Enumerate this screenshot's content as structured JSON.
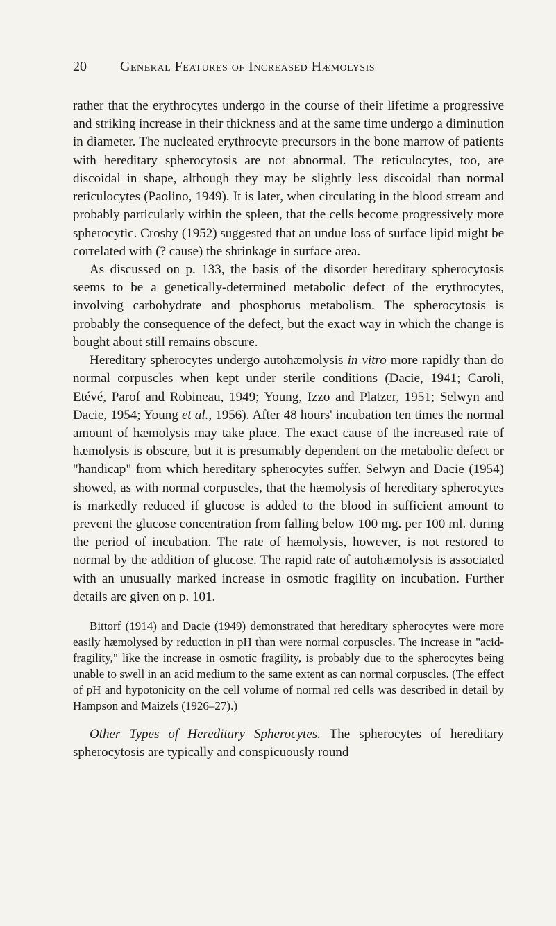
{
  "header": {
    "page_number": "20",
    "title": "General Features of Increased Hæmolysis"
  },
  "paragraphs": {
    "p1": "rather that the erythrocytes undergo in the course of their lifetime a progressive and striking increase in their thickness and at the same time undergo a diminution in diameter. The nucleated erythrocyte precursors in the bone marrow of patients with hereditary spherocytosis are not abnormal. The reticulocytes, too, are discoidal in shape, although they may be slightly less discoidal than normal reticulocytes (Paolino, 1949). It is later, when circulating in the blood stream and probably particularly within the spleen, that the cells become progressively more spherocytic. Crosby (1952) suggested that an undue loss of surface lipid might be correlated with (? cause) the shrinkage in surface area.",
    "p2": "As discussed on p. 133, the basis of the disorder hereditary spherocytosis seems to be a genetically-determined metabolic defect of the erythrocytes, involving carbohydrate and phosphorus metabolism. The spherocytosis is probably the consequence of the defect, but the exact way in which the change is bought about still remains obscure.",
    "p3_prefix": "Hereditary spherocytes undergo autohæmolysis ",
    "p3_italic": "in vitro",
    "p3_suffix": " more rapidly than do normal corpuscles when kept under sterile conditions (Dacie, 1941; Caroli, Etévé, Parof and Robineau, 1949; Young, Izzo and Platzer, 1951; Selwyn and Dacie, 1954; Young ",
    "p3_italic2": "et al.",
    "p3_suffix2": ", 1956). After 48 hours' incubation ten times the normal amount of hæmolysis may take place. The exact cause of the increased rate of hæmolysis is obscure, but it is presumably dependent on the metabolic defect or \"handicap\" from which hereditary spherocytes suffer. Selwyn and Dacie (1954) showed, as with normal corpuscles, that the hæmolysis of hereditary spherocytes is markedly reduced if glucose is added to the blood in sufficient amount to prevent the glucose concentration from falling below 100 mg. per 100 ml. during the period of incubation. The rate of hæmolysis, however, is not restored to normal by the addition of glucose. The rapid rate of autohæmolysis is associated with an unusually marked increase in osmotic fragility on incubation. Further details are given on p. 101.",
    "p4": "Bittorf (1914) and Dacie (1949) demonstrated that hereditary spherocytes were more easily hæmolysed by reduction in pH than were normal corpuscles. The increase in \"acid-fragility,\" like the increase in osmotic fragility, is probably due to the spherocytes being unable to swell in an acid medium to the same extent as can normal corpuscles. (The effect of pH and hypotonicity on the cell volume of normal red cells was described in detail by Hampson and Maizels (1926–27).)",
    "p5_italic": "Other Types of Hereditary Spherocytes.",
    "p5_suffix": " The spherocytes of hereditary spherocytosis are typically and conspicuously round"
  }
}
